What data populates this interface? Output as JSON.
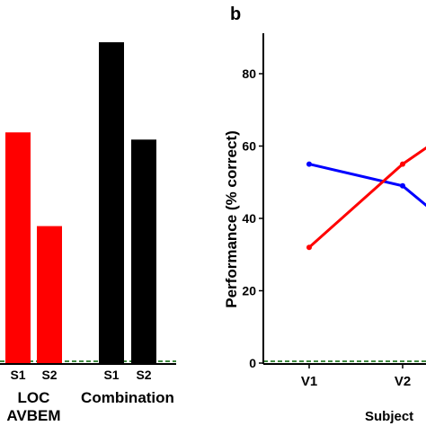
{
  "chart_data": [
    {
      "type": "bar",
      "panel_label": "",
      "groups": [
        {
          "name": "LOC AVBEM",
          "name_lines": [
            "LOC",
            "AVBEM"
          ],
          "color": "#ff0000",
          "categories": [
            "S1",
            "S2"
          ],
          "values": [
            64,
            38
          ]
        },
        {
          "name": "Combination",
          "name_lines": [
            "Combination"
          ],
          "color": "#000000",
          "categories": [
            "S1",
            "S2"
          ],
          "values": [
            89,
            62
          ]
        }
      ],
      "ylim": [
        0,
        90
      ],
      "chance_level": 0.5,
      "chance_line_color": "#006400"
    },
    {
      "type": "line",
      "panel_label": "b",
      "ylabel": "Performance (% correct)",
      "xlabel": "Subject",
      "categories": [
        "V1",
        "V2"
      ],
      "yticks": [
        0,
        20,
        40,
        60,
        80
      ],
      "ylim": [
        0,
        90
      ],
      "series": [
        {
          "color": "#0000ff",
          "points": [
            [
              0,
              55
            ],
            [
              1,
              49
            ],
            [
              1.28,
              43
            ]
          ]
        },
        {
          "color": "#ff0000",
          "points": [
            [
              0,
              32
            ],
            [
              1,
              55
            ],
            [
              1.28,
              60
            ]
          ]
        }
      ],
      "chance_level": 0.5,
      "chance_line_color": "#006400"
    }
  ]
}
